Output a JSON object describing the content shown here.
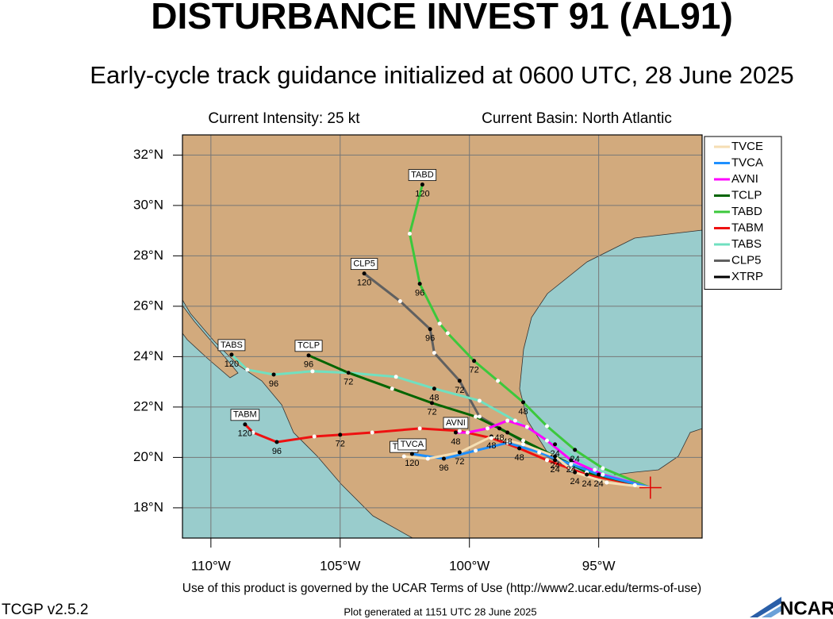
{
  "chart_data": {
    "type": "map",
    "title": "DISTURBANCE INVEST 91 (AL91)",
    "subtitle": "Early-cycle track guidance initialized at 0600 UTC, 28 June 2025",
    "intensity": "Current Intensity: 25 kt",
    "basin": "Current Basin: North Atlantic",
    "xlim": [
      -111.1,
      -91.0
    ],
    "ylim": [
      16.8,
      32.8
    ],
    "xticks": [
      {
        "value": -110,
        "label": "110°W"
      },
      {
        "value": -105,
        "label": "105°W"
      },
      {
        "value": -100,
        "label": "100°W"
      },
      {
        "value": -95,
        "label": "95°W"
      }
    ],
    "yticks": [
      {
        "value": 18,
        "label": "18°N"
      },
      {
        "value": 20,
        "label": "20°N"
      },
      {
        "value": 22,
        "label": "22°N"
      },
      {
        "value": 24,
        "label": "24°N"
      },
      {
        "value": 26,
        "label": "26°N"
      },
      {
        "value": 28,
        "label": "28°N"
      },
      {
        "value": 30,
        "label": "30°N"
      },
      {
        "value": 32,
        "label": "32°N"
      }
    ],
    "grid": true,
    "land_color": "#d2aa7d",
    "water_color": "#99cccc",
    "storm_position": [
      -93.0,
      18.8
    ],
    "legend": "upper right",
    "series": [
      {
        "name": "TVCE",
        "color": "#f5deb3",
        "lon": [
          -93.0,
          -94.69,
          -95.92,
          -96.69,
          -97.92,
          -99.15,
          -100.38,
          -101.61,
          -102.53
        ],
        "lat": [
          18.8,
          19.0,
          19.41,
          20.04,
          20.52,
          20.83,
          20.2,
          19.95,
          20.04
        ],
        "hours": [
          null,
          null,
          24,
          null,
          null,
          48,
          72,
          null,
          null
        ]
      },
      {
        "name": "TVCA",
        "color": "#1e90ff",
        "lon": [
          -93.0,
          -95.0,
          -96.07,
          -97.3,
          -98.53,
          -99.76,
          -100.99,
          -102.22
        ],
        "lat": [
          18.8,
          19.32,
          19.73,
          20.2,
          20.58,
          20.27,
          19.95,
          20.14
        ],
        "hours": [
          null,
          24,
          null,
          null,
          null,
          null,
          96,
          120
        ]
      },
      {
        "name": "AVNI",
        "color": "#ff00ff",
        "lon": [
          -93.0,
          -94.84,
          -96.07,
          -97.0,
          -97.77,
          -98.53,
          -99.3,
          -100.07,
          -100.53
        ],
        "lat": [
          18.8,
          19.32,
          19.89,
          20.67,
          21.21,
          21.46,
          21.15,
          20.99,
          20.99
        ],
        "hours": [
          null,
          null,
          24,
          null,
          null,
          null,
          null,
          null,
          48
        ]
      },
      {
        "name": "TCLP",
        "color": "#006400",
        "lon": [
          -93.0,
          -95.46,
          -96.69,
          -97.92,
          -98.84,
          -99.76,
          -101.45,
          -102.99,
          -104.68,
          -106.22
        ],
        "lat": [
          18.8,
          19.41,
          20.04,
          20.67,
          21.15,
          21.62,
          22.16,
          22.73,
          23.36,
          24.05
        ],
        "hours": [
          null,
          null,
          24,
          null,
          48,
          null,
          72,
          null,
          null,
          96
        ]
      },
      {
        "name": "TABD",
        "color": "#3cc83c",
        "lon": [
          -93.0,
          -94.84,
          -95.92,
          -97.0,
          -97.92,
          -98.9,
          -99.82,
          -100.84,
          -101.15,
          -101.92,
          -102.31,
          -101.82
        ],
        "lat": [
          18.8,
          19.57,
          20.3,
          21.24,
          22.19,
          23.04,
          23.83,
          24.93,
          25.31,
          26.89,
          28.88,
          30.83
        ],
        "hours": [
          null,
          null,
          24,
          null,
          48,
          null,
          72,
          null,
          null,
          96,
          null,
          120
        ]
      },
      {
        "name": "TABM",
        "color": "#ee1111",
        "lon": [
          -93.0,
          -95.46,
          -97.0,
          -98.07,
          -99.15,
          -100.38,
          -101.92,
          -103.76,
          -105.0,
          -106.0,
          -107.45,
          -108.37,
          -108.68
        ],
        "lat": [
          18.8,
          19.32,
          19.89,
          20.36,
          20.77,
          21.05,
          21.15,
          20.99,
          20.9,
          20.83,
          20.61,
          20.99,
          21.31
        ],
        "hours": [
          null,
          24,
          null,
          48,
          null,
          null,
          null,
          null,
          72,
          null,
          96,
          null,
          120
        ]
      },
      {
        "name": "TABS",
        "color": "#70e0c0",
        "lon": [
          -93.0,
          -95.15,
          -96.69,
          -98.23,
          -99.61,
          -101.36,
          -102.84,
          -104.68,
          -106.07,
          -107.57,
          -108.59,
          -109.2
        ],
        "lat": [
          18.8,
          19.51,
          20.52,
          21.46,
          22.25,
          22.73,
          23.2,
          23.36,
          23.42,
          23.29,
          23.48,
          24.08
        ],
        "hours": [
          null,
          null,
          24,
          null,
          null,
          48,
          null,
          72,
          null,
          96,
          null,
          120
        ]
      },
      {
        "name": "CLP5",
        "color": "#606060",
        "lon": [
          -93.0,
          -96.69,
          -98.53,
          -99.61,
          -100.38,
          -101.36,
          -101.52,
          -102.68,
          -104.07
        ],
        "lat": [
          18.8,
          19.89,
          20.99,
          21.62,
          23.04,
          24.15,
          25.09,
          26.2,
          27.3
        ],
        "hours": [
          null,
          24,
          48,
          null,
          72,
          null,
          96,
          null,
          120
        ]
      },
      {
        "name": "XTRP",
        "color": "#000000",
        "lon": [
          -93.0,
          -93.6
        ],
        "lat": [
          18.8,
          18.9
        ],
        "hours": [
          null,
          null
        ]
      }
    ]
  },
  "footer": {
    "terms": "Use of this product is governed by the UCAR Terms of Use (http://www2.ucar.edu/terms-of-use)",
    "version": "TCGP v2.5.2",
    "generated": "Plot generated at 1151 UTC  28 June 2025",
    "logo": "NCAR"
  }
}
